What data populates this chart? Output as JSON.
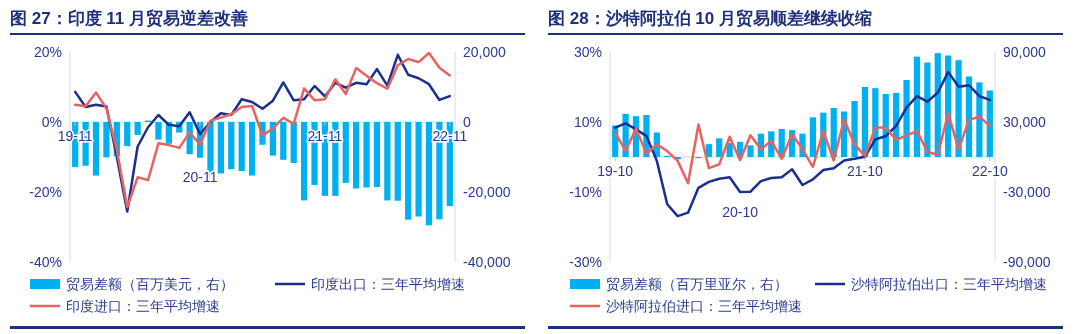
{
  "chart_data": [
    {
      "type": "bar",
      "title": "图 27：印度 11 月贸易逆差改善",
      "categories": [
        "19-11",
        null,
        null,
        null,
        null,
        null,
        null,
        null,
        null,
        null,
        null,
        null,
        "20-11",
        null,
        null,
        null,
        null,
        null,
        null,
        null,
        null,
        null,
        null,
        null,
        "21-11",
        null,
        null,
        null,
        null,
        null,
        null,
        null,
        null,
        null,
        null,
        null,
        "22-11"
      ],
      "series": [
        {
          "name": "贸易差额（百万美元，右）",
          "axis": "y2",
          "color": "#00b0f0",
          "values": [
            -12900,
            -12500,
            -15300,
            -10100,
            -9800,
            -6900,
            -3700,
            400,
            -5000,
            -6200,
            -3000,
            -9200,
            -10200,
            -15800,
            -14700,
            -13500,
            -14000,
            -15300,
            -6500,
            -9600,
            -10800,
            -11700,
            -22400,
            -18000,
            -21100,
            -21100,
            -17400,
            -19000,
            -18700,
            -18600,
            -22400,
            -22500,
            -27900,
            -27000,
            -29500,
            -27800,
            -24000
          ]
        },
        {
          "name": "印度出口：三年平均增速",
          "type": "line",
          "color": "#1a2f8f",
          "values": [
            8.6,
            4.3,
            4.9,
            4.4,
            -10,
            -25.6,
            -7,
            -1.5,
            2,
            -0.8,
            -1.2,
            2.8,
            -3.5,
            0,
            2.5,
            2,
            6.5,
            5.7,
            3.8,
            6.1,
            11.3,
            6.2,
            6.5,
            10.3,
            7.3,
            11.2,
            9.8,
            11.2,
            10.8,
            15.1,
            10.4,
            19.2,
            13.5,
            12.5,
            10.8,
            6.3,
            7.4
          ]
        },
        {
          "name": "印度进口：三年平均增速",
          "type": "line",
          "color": "#e8625f",
          "values": [
            4.9,
            4.5,
            8.4,
            3.9,
            -8,
            -24.3,
            -15.8,
            -16.6,
            -6.1,
            -6.6,
            -7.4,
            -3,
            -6.5,
            0.4,
            1.3,
            2.2,
            4.3,
            4.6,
            -3.9,
            -1.8,
            1.2,
            -0.5,
            9.6,
            6.2,
            6.5,
            12.2,
            8,
            15.4,
            13.2,
            11.1,
            9.5,
            16.2,
            18,
            17.1,
            19.7,
            15.5,
            13.3
          ]
        }
      ],
      "ylim": [
        -40,
        20
      ],
      "yticks": [
        {
          "value": -40,
          "label": "-40%"
        },
        {
          "value": -20,
          "label": "-20%"
        },
        {
          "value": 0,
          "label": "0%"
        },
        {
          "value": 20,
          "label": "20%"
        }
      ],
      "y2lim": [
        -40000,
        20000
      ],
      "y2ticks": [
        {
          "value": -40000,
          "label": "-40,000"
        },
        {
          "value": -20000,
          "label": "-20,000"
        },
        0,
        {
          "value": 20000,
          "label": "20,000"
        }
      ],
      "legend": "bottom"
    },
    {
      "type": "bar",
      "title": "图 28：沙特阿拉伯 10 月贸易顺差继续收缩",
      "categories": [
        "19-10",
        null,
        null,
        null,
        null,
        null,
        null,
        null,
        null,
        null,
        null,
        null,
        "20-10",
        null,
        null,
        null,
        null,
        null,
        null,
        null,
        null,
        null,
        null,
        null,
        "21-10",
        null,
        null,
        null,
        null,
        null,
        null,
        null,
        null,
        null,
        null,
        null,
        "22-10"
      ],
      "series": [
        {
          "name": "贸易差额（百万里亚尔，右）",
          "axis": "y2",
          "color": "#00b0f0",
          "values": [
            27000,
            37000,
            35000,
            36000,
            21000,
            1000,
            -2000,
            0,
            -1000,
            11000,
            16000,
            12000,
            13000,
            10000,
            20000,
            22000,
            24000,
            23000,
            20000,
            34000,
            38000,
            42000,
            39000,
            48000,
            60000,
            59000,
            54000,
            55000,
            66000,
            86000,
            81000,
            89000,
            87000,
            83000,
            69000,
            64000,
            57000
          ]
        },
        {
          "name": "沙特阿拉伯出口：三年平均增速",
          "type": "line",
          "color": "#1a2f8f",
          "values": [
            8.4,
            9.6,
            7.9,
            6,
            -1.1,
            -13.5,
            -16.9,
            -15.9,
            -8.8,
            -7.1,
            -6.2,
            -5.8,
            -10,
            -9.9,
            -6.9,
            -6,
            -5.8,
            -3.5,
            -8,
            -6.4,
            -3.7,
            -3.2,
            -1,
            -0.5,
            0.1,
            5,
            6,
            8.9,
            14.1,
            17.4,
            15.8,
            18.4,
            24.3,
            20.1,
            20.5,
            17.4,
            16.3
          ]
        },
        {
          "name": "沙特阿拉伯进口：三年平均增速",
          "type": "line",
          "color": "#e8625f",
          "values": [
            7,
            1.7,
            8.1,
            1,
            3.6,
            1.7,
            -1.1,
            -7.5,
            9.3,
            -3.2,
            -2.1,
            5.8,
            -0.9,
            6.2,
            2.2,
            4.6,
            -0.5,
            6.5,
            2.2,
            -2.8,
            7.4,
            -1,
            10.8,
            3.6,
            0.3,
            8.4,
            8.4,
            4.9,
            6.2,
            7.4,
            1.5,
            0.6,
            12.5,
            2.2,
            10.6,
            11.5,
            8.9
          ]
        }
      ],
      "ylim": [
        -30,
        30
      ],
      "yticks": [
        {
          "value": -30,
          "label": "-30%"
        },
        {
          "value": -10,
          "label": "-10%"
        },
        {
          "value": 10,
          "label": "10%"
        },
        {
          "value": 30,
          "label": "30%"
        }
      ],
      "y2lim": [
        -90000,
        90000
      ],
      "y2ticks": [
        {
          "value": -90000,
          "label": "-90,000"
        },
        {
          "value": -30000,
          "label": "-30,000"
        },
        {
          "value": 30000,
          "label": "30,000"
        },
        {
          "value": 90000,
          "label": "90,000"
        }
      ],
      "legend": "bottom"
    }
  ]
}
